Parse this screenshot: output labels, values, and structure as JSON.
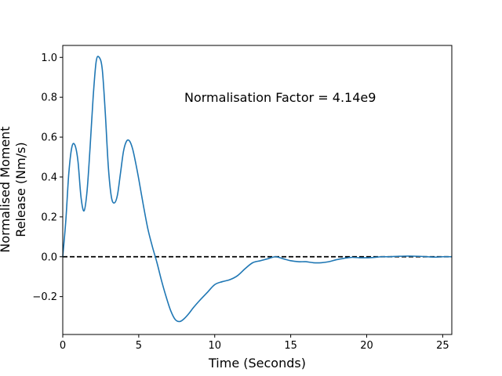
{
  "chart_data": {
    "type": "line",
    "title": "",
    "xlabel": "Time (Seconds)",
    "ylabel_lines": [
      "Normalised Moment",
      "Release (Nm/s)"
    ],
    "xlim": [
      0,
      25.6
    ],
    "ylim": [
      -0.39,
      1.06
    ],
    "xticks": [
      0,
      5,
      10,
      15,
      20,
      25
    ],
    "yticks": [
      -0.2,
      0.0,
      0.2,
      0.4,
      0.6,
      0.8,
      1.0
    ],
    "xtick_labels": [
      "0",
      "5",
      "10",
      "15",
      "20",
      "25"
    ],
    "ytick_labels": [
      "−0.2",
      "0.0",
      "0.2",
      "0.4",
      "0.6",
      "0.8",
      "1.0"
    ],
    "annotation": {
      "text": "Normalisation Factor = 4.14e9",
      "x": 8.0,
      "y": 0.8
    },
    "reference_line": {
      "y": 0.0,
      "style": "dashed",
      "color": "#000000"
    },
    "grid": false,
    "series": [
      {
        "color": "#1f77b4",
        "x": [
          0.0,
          0.2,
          0.4,
          0.6,
          0.8,
          1.0,
          1.2,
          1.4,
          1.6,
          1.8,
          2.0,
          2.2,
          2.4,
          2.6,
          2.8,
          3.0,
          3.2,
          3.4,
          3.6,
          3.8,
          4.0,
          4.2,
          4.4,
          4.6,
          4.8,
          5.0,
          5.3,
          5.6,
          5.9,
          6.2,
          6.5,
          6.8,
          7.1,
          7.4,
          7.7,
          8.0,
          8.3,
          8.6,
          9.0,
          9.5,
          10.0,
          10.5,
          11.0,
          11.5,
          12.0,
          12.5,
          13.0,
          13.5,
          14.0,
          14.5,
          15.0,
          15.5,
          16.0,
          16.5,
          17.0,
          17.5,
          18.0,
          18.5,
          19.0,
          19.5,
          20.0,
          20.5,
          21.0,
          21.5,
          22.0,
          22.5,
          23.0,
          23.5,
          24.0,
          24.5,
          25.0,
          25.6
        ],
        "y": [
          0.0,
          0.18,
          0.42,
          0.55,
          0.56,
          0.48,
          0.3,
          0.23,
          0.33,
          0.55,
          0.8,
          0.98,
          1.0,
          0.94,
          0.72,
          0.45,
          0.3,
          0.27,
          0.31,
          0.42,
          0.53,
          0.58,
          0.58,
          0.54,
          0.47,
          0.39,
          0.26,
          0.14,
          0.05,
          -0.03,
          -0.12,
          -0.2,
          -0.27,
          -0.315,
          -0.325,
          -0.31,
          -0.285,
          -0.255,
          -0.22,
          -0.18,
          -0.14,
          -0.125,
          -0.115,
          -0.095,
          -0.06,
          -0.03,
          -0.02,
          -0.01,
          0.0,
          -0.01,
          -0.02,
          -0.025,
          -0.025,
          -0.03,
          -0.03,
          -0.025,
          -0.015,
          -0.008,
          -0.003,
          -0.005,
          -0.005,
          -0.003,
          0.0,
          0.0,
          0.002,
          0.003,
          0.003,
          0.002,
          0.0,
          -0.002,
          0.0,
          0.0
        ]
      }
    ]
  }
}
